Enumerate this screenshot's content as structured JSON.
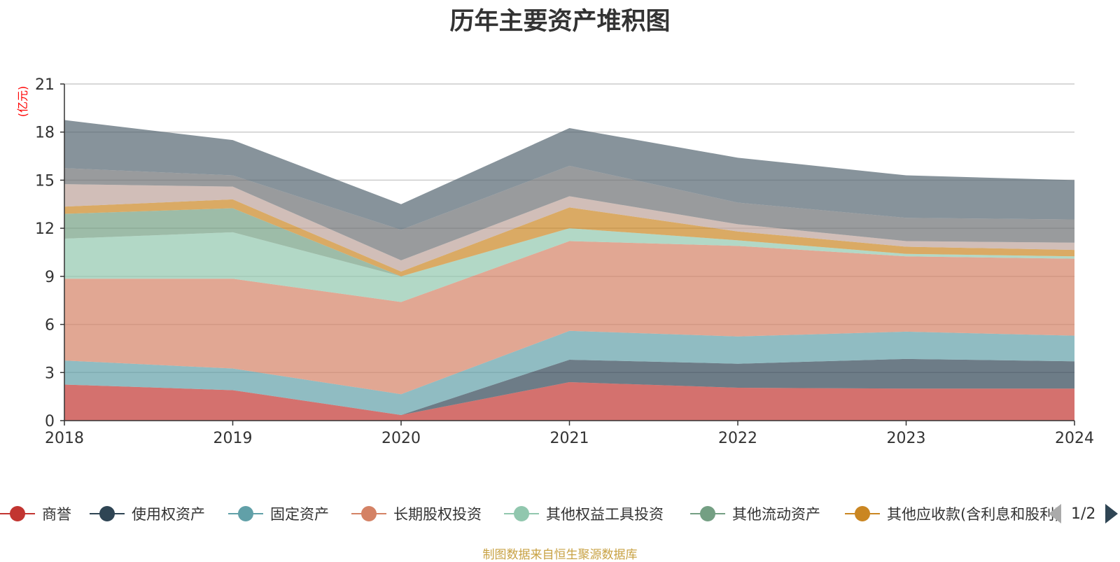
{
  "title": "历年主要资产堆积图",
  "source_note": "制图数据来自恒生聚源数据库",
  "pager": {
    "text": "1/2"
  },
  "chart_data": {
    "type": "area",
    "stacked": true,
    "title": "历年主要资产堆积图",
    "ylabel": "(亿元)",
    "xlabel": "",
    "ylim": [
      0,
      21
    ],
    "yticks": [
      0,
      3,
      6,
      9,
      12,
      15,
      18,
      21
    ],
    "grid": true,
    "legend_position": "bottom",
    "categories": [
      "2018",
      "2019",
      "2020",
      "2021",
      "2022",
      "2023",
      "2024"
    ],
    "series": [
      {
        "name": "商誉",
        "color": "#c23531",
        "values": [
          2.25,
          1.9,
          0.35,
          2.4,
          2.05,
          2.0,
          2.0
        ]
      },
      {
        "name": "使用权资产",
        "color": "#2f4554",
        "values": [
          0,
          0,
          0,
          1.4,
          1.5,
          1.85,
          1.7
        ]
      },
      {
        "name": "固定资产",
        "color": "#61a0a8",
        "values": [
          1.5,
          1.35,
          1.3,
          1.8,
          1.7,
          1.7,
          1.6
        ]
      },
      {
        "name": "长期股权投资",
        "color": "#d48265",
        "values": [
          5.1,
          5.6,
          5.75,
          5.6,
          5.65,
          4.7,
          4.8
        ]
      },
      {
        "name": "其他权益工具投资",
        "color": "#91c7ae",
        "values": [
          2.5,
          2.9,
          1.6,
          0.8,
          0.35,
          0.15,
          0.15
        ]
      },
      {
        "name": "其他流动资产",
        "color": "#749f83",
        "values": [
          1.55,
          1.5,
          0,
          0,
          0,
          0,
          0
        ]
      },
      {
        "name": "其他应收款(含利息和股利)",
        "color": "#ca8622",
        "values": [
          0.45,
          0.55,
          0.3,
          1.3,
          0.55,
          0.45,
          0.4
        ]
      },
      {
        "name": "",
        "color": "#bda29a",
        "values": [
          1.4,
          0.8,
          0.7,
          0.7,
          0.45,
          0.35,
          0.45
        ]
      },
      {
        "name": "",
        "color": "#6e7074",
        "values": [
          1.0,
          0.7,
          1.9,
          1.9,
          1.35,
          1.45,
          1.45
        ]
      },
      {
        "name": "",
        "color": "#546570",
        "values": [
          3.0,
          2.2,
          1.6,
          2.35,
          2.8,
          2.65,
          2.45
        ]
      }
    ]
  },
  "legend": {
    "items": [
      {
        "label": "商誉",
        "color": "#c23531"
      },
      {
        "label": "使用权资产",
        "color": "#2f4554"
      },
      {
        "label": "固定资产",
        "color": "#61a0a8"
      },
      {
        "label": "长期股权投资",
        "color": "#d48265"
      },
      {
        "label": "其他权益工具投资",
        "color": "#91c7ae"
      },
      {
        "label": "其他流动资产",
        "color": "#749f83"
      },
      {
        "label": "其他应收款(含利息和股利)",
        "color": "#ca8622"
      }
    ]
  }
}
